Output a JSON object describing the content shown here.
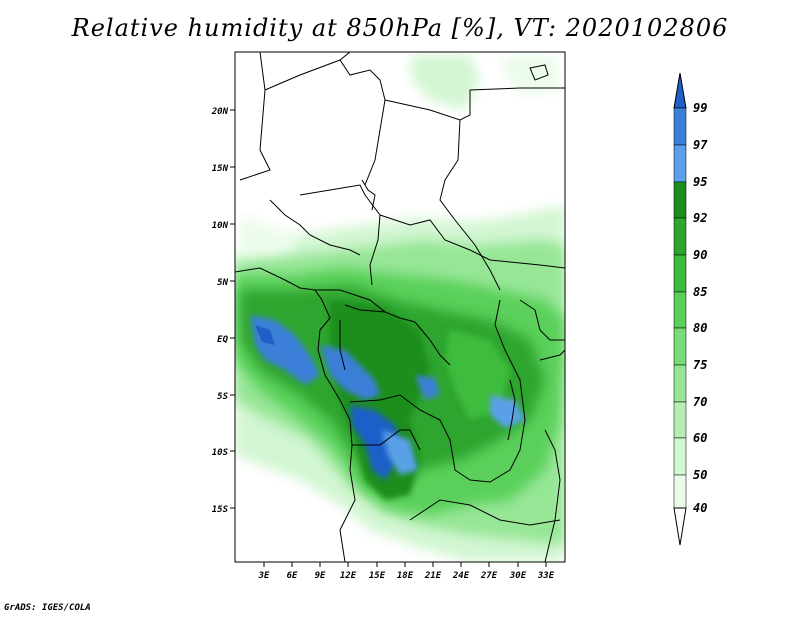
{
  "title": "Relative humidity at 850hPa [%], VT: 2020102806",
  "credit": "GrADS: IGES/COLA",
  "map": {
    "region": "Central Africa",
    "lat_ticks": [
      "20N",
      "15N",
      "10N",
      "5N",
      "EQ",
      "5S",
      "10S",
      "15S"
    ],
    "lon_ticks": [
      "3E",
      "6E",
      "9E",
      "12E",
      "15E",
      "18E",
      "21E",
      "24E",
      "27E",
      "30E",
      "33E"
    ]
  },
  "colorbar": {
    "levels": [
      "99",
      "97",
      "95",
      "92",
      "90",
      "85",
      "80",
      "75",
      "70",
      "60",
      "50",
      "40"
    ],
    "colors": {
      "above_99": "#1f5fc8",
      "97_99": "#3a7fd8",
      "95_97": "#5aa0e8",
      "92_95": "#1e8e1e",
      "90_92": "#2fa52f",
      "85_90": "#3cbc3c",
      "80_85": "#5ad05a",
      "75_80": "#78dc78",
      "70_75": "#96e696",
      "60_70": "#b4eeb4",
      "50_60": "#d2f6d2",
      "40_50": "#ecfcec",
      "below_40": "#ffffff"
    }
  }
}
